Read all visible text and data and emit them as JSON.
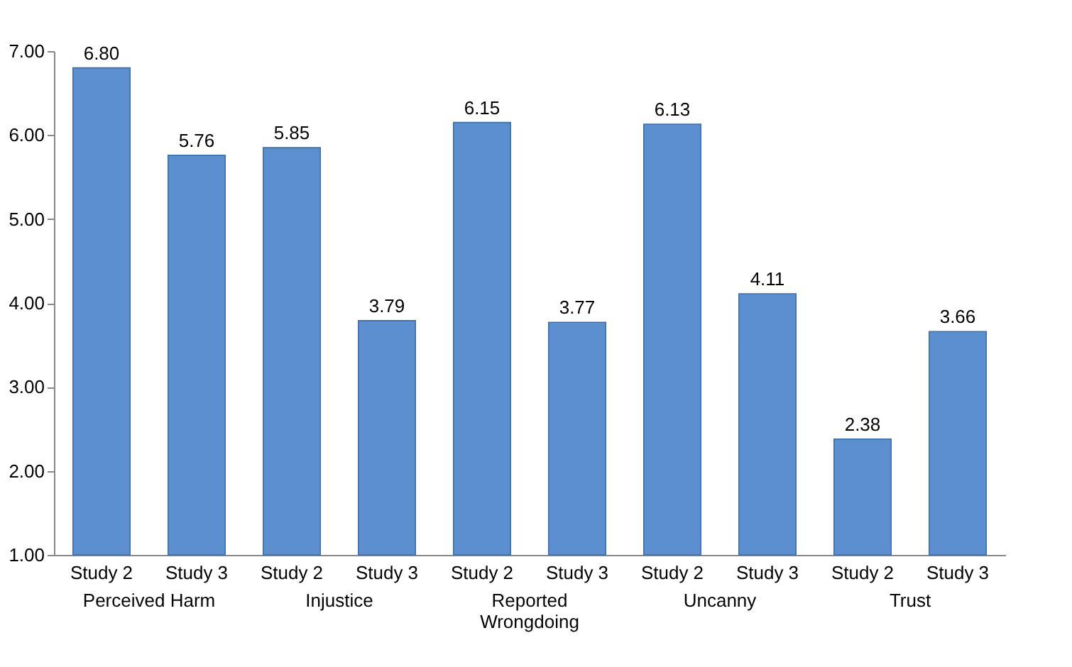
{
  "chart_data": {
    "type": "bar",
    "categories": [
      "Perceived Harm",
      "Injustice",
      "Reported Wrongdoing",
      "Uncanny",
      "Trust"
    ],
    "series": [
      {
        "name": "Study 2",
        "color": "#5b8fd0",
        "values": [
          6.8,
          5.85,
          6.15,
          6.13,
          2.38
        ],
        "value_labels": [
          "6.80",
          "5.85",
          "6.15",
          "6.13",
          "2.38"
        ]
      },
      {
        "name": "Study 3",
        "color": "#5b8fd0",
        "values": [
          5.76,
          3.79,
          3.77,
          4.11,
          3.66
        ],
        "value_labels": [
          "5.76",
          "3.79",
          "3.77",
          "4.11",
          "3.66"
        ]
      }
    ],
    "ylim": [
      1,
      7
    ],
    "yticks": [
      {
        "value": 1,
        "label": "1.00"
      },
      {
        "value": 2,
        "label": "2.00"
      },
      {
        "value": 3,
        "label": "3.00"
      },
      {
        "value": 4,
        "label": "4.00"
      },
      {
        "value": 5,
        "label": "5.00"
      },
      {
        "value": 6,
        "label": "6.00"
      },
      {
        "value": 7,
        "label": "7.00"
      }
    ]
  }
}
